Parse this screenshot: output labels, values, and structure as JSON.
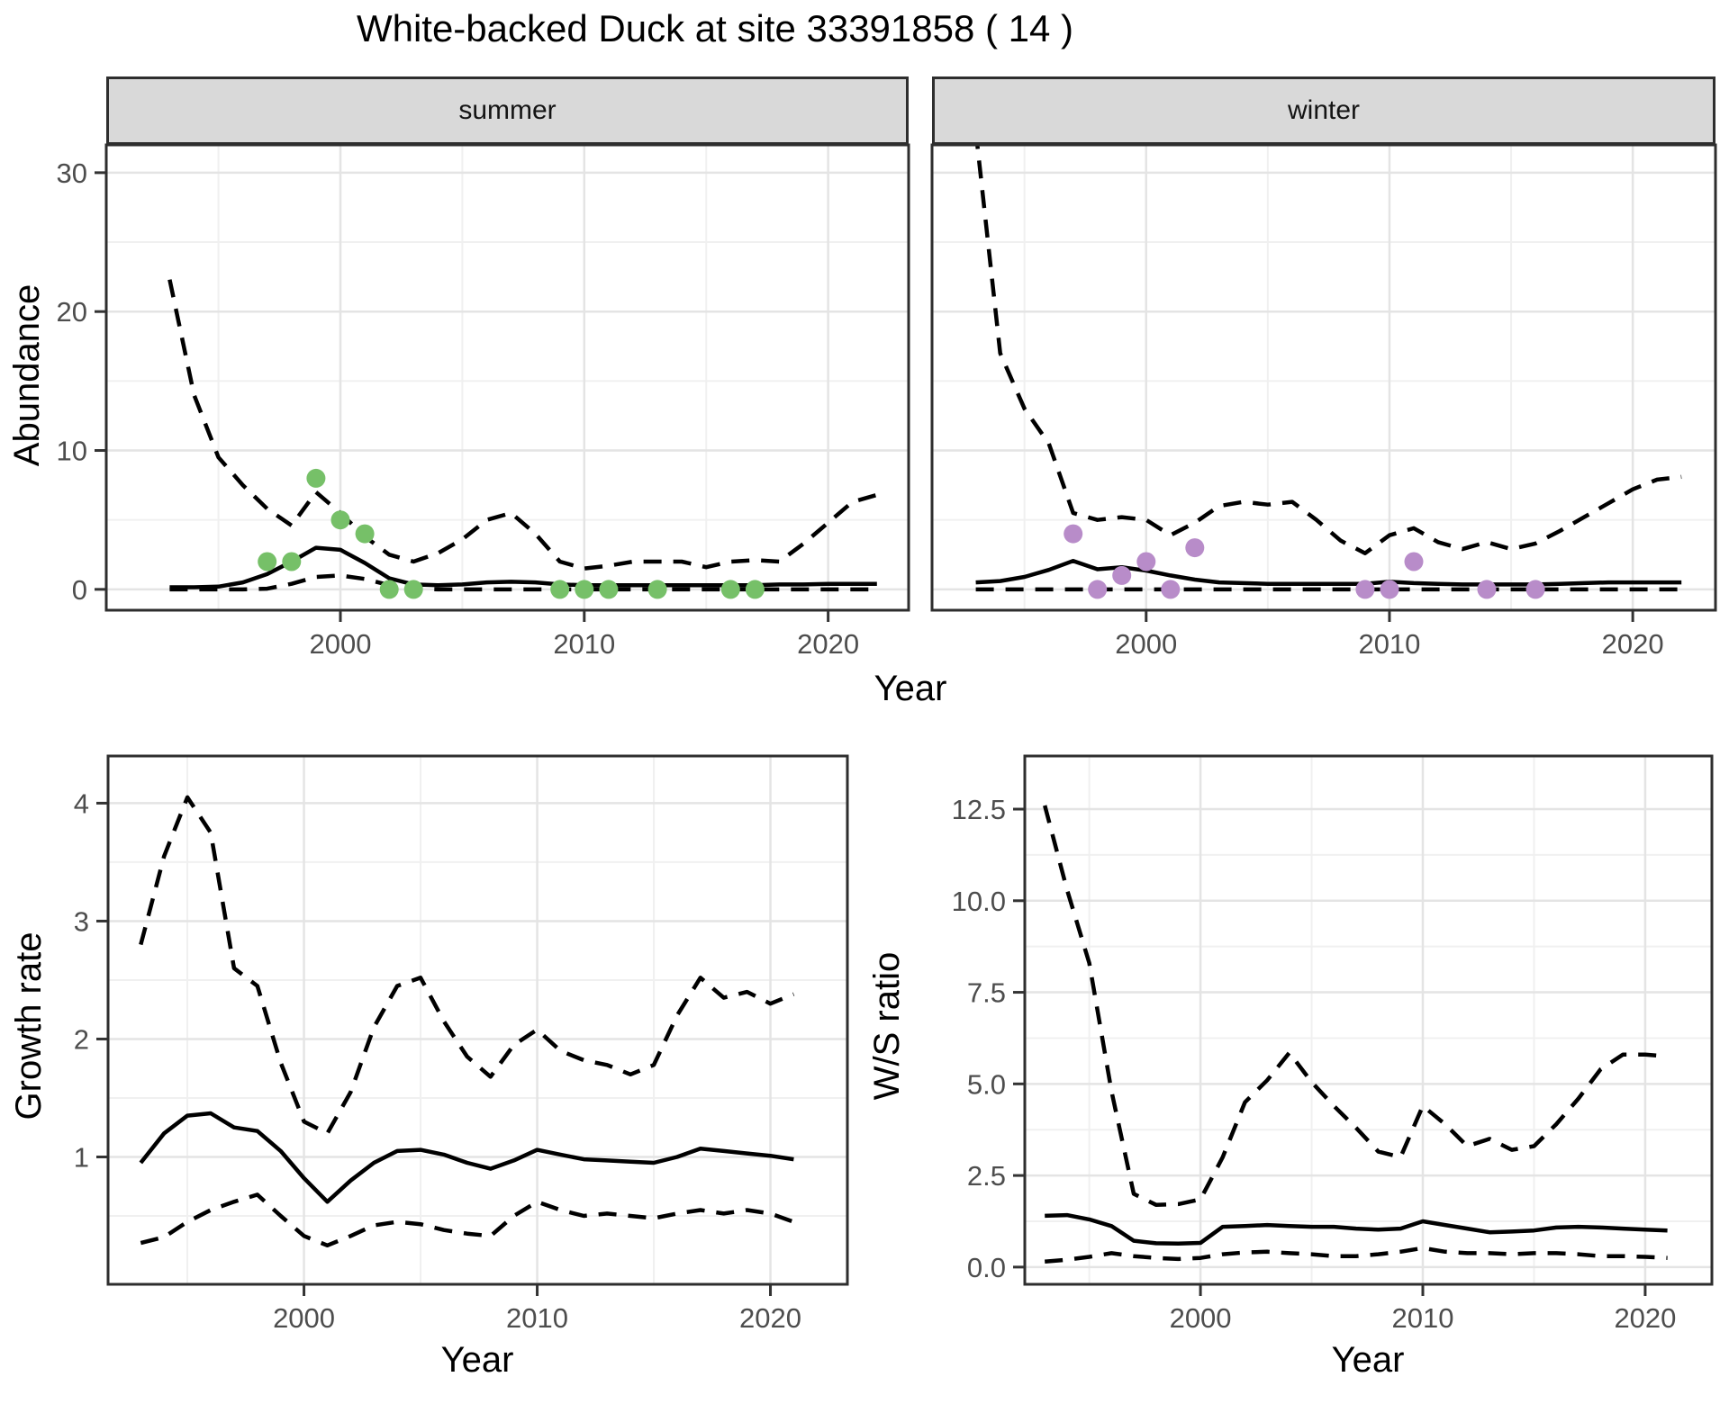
{
  "title": "White-backed Duck at site 33391858 ( 14 )",
  "colors": {
    "summer_point": "#76C068",
    "winter_point": "#B88CC9",
    "line": "#000000",
    "strip_bg": "#D9D9D9",
    "panel_border": "#2E2E2E",
    "grid_major": "#E4E4E4",
    "grid_minor": "#F0F0F0",
    "tick_text": "#4D4D4D"
  },
  "facets": {
    "summer": "summer",
    "winter": "winter"
  },
  "axis": {
    "abundance_label": "Abundance",
    "year_label": "Year",
    "growth_label": "Growth rate",
    "ws_label": "W/S ratio"
  },
  "chart_data": [
    {
      "id": "abundance_summer",
      "type": "line",
      "facet_label": "summer",
      "xlabel": "Year",
      "ylabel": "Abundance",
      "xlim": [
        1990.4,
        2023.3
      ],
      "ylim": [
        -1.5,
        32.0
      ],
      "xticks": [
        2000,
        2010,
        2020
      ],
      "xtick_labels": [
        "2000",
        "2010",
        "2020"
      ],
      "xminor": [
        1995,
        2005,
        2015
      ],
      "yticks": [
        0,
        10,
        20,
        30
      ],
      "ytick_labels": [
        "0",
        "10",
        "20",
        "30"
      ],
      "yminor": [
        5,
        15,
        25
      ],
      "grid": true,
      "legend": "none",
      "x": [
        1993,
        1994,
        1995,
        1996,
        1997,
        1998,
        1999,
        2000,
        2001,
        2002,
        2003,
        2004,
        2005,
        2006,
        2007,
        2008,
        2009,
        2010,
        2011,
        2012,
        2013,
        2014,
        2015,
        2016,
        2017,
        2018,
        2019,
        2020,
        2021,
        2022
      ],
      "series": [
        {
          "name": "median",
          "style": "solid",
          "values": [
            0.15,
            0.15,
            0.2,
            0.5,
            1.1,
            2.0,
            3.0,
            2.85,
            1.9,
            0.8,
            0.35,
            0.3,
            0.35,
            0.5,
            0.55,
            0.5,
            0.35,
            0.3,
            0.3,
            0.3,
            0.3,
            0.3,
            0.3,
            0.3,
            0.3,
            0.35,
            0.35,
            0.4,
            0.4,
            0.4
          ]
        },
        {
          "name": "upper_ci",
          "style": "dashed",
          "values": [
            22.3,
            14.0,
            9.5,
            7.5,
            5.8,
            4.6,
            7.0,
            5.5,
            3.8,
            2.5,
            2.0,
            2.6,
            3.6,
            5.0,
            5.5,
            4.0,
            2.0,
            1.5,
            1.7,
            2.0,
            2.0,
            2.0,
            1.6,
            2.0,
            2.1,
            2.0,
            3.3,
            4.8,
            6.3,
            6.8
          ]
        },
        {
          "name": "lower_ci",
          "style": "dashed",
          "values": [
            0,
            0,
            0,
            0,
            0.05,
            0.4,
            0.9,
            1.0,
            0.75,
            0.3,
            0.05,
            0,
            0,
            0,
            0,
            0,
            0,
            0,
            0,
            0,
            0,
            0,
            0,
            0,
            0,
            0,
            0,
            0,
            0,
            0
          ]
        }
      ],
      "points": {
        "name": "observed_counts",
        "color": "#76C068",
        "x": [
          1997,
          1998,
          1999,
          2000,
          2001,
          2002,
          2003,
          2009,
          2010,
          2011,
          2013,
          2016,
          2017
        ],
        "y": [
          2,
          2,
          8,
          5,
          4,
          0,
          0,
          0,
          0,
          0,
          0,
          0,
          0
        ]
      }
    },
    {
      "id": "abundance_winter",
      "type": "line",
      "facet_label": "winter",
      "xlabel": "Year",
      "ylabel": "Abundance",
      "xlim": [
        1991.2,
        2023.4
      ],
      "ylim": [
        -1.5,
        32.0
      ],
      "xticks": [
        2000,
        2010,
        2020
      ],
      "xtick_labels": [
        "2000",
        "2010",
        "2020"
      ],
      "xminor": [
        1995,
        2005,
        2015
      ],
      "yticks": [
        0,
        10,
        20,
        30
      ],
      "ytick_labels": [],
      "yminor": [
        5,
        15,
        25
      ],
      "grid": true,
      "legend": "none",
      "x": [
        1993,
        1994,
        1995,
        1996,
        1997,
        1998,
        1999,
        2000,
        2001,
        2002,
        2003,
        2004,
        2005,
        2006,
        2007,
        2008,
        2009,
        2010,
        2011,
        2012,
        2013,
        2014,
        2015,
        2016,
        2017,
        2018,
        2019,
        2020,
        2021,
        2022
      ],
      "series": [
        {
          "name": "median",
          "style": "solid",
          "values": [
            0.5,
            0.6,
            0.9,
            1.4,
            2.05,
            1.45,
            1.6,
            1.35,
            1.0,
            0.7,
            0.5,
            0.45,
            0.4,
            0.4,
            0.4,
            0.4,
            0.4,
            0.55,
            0.45,
            0.4,
            0.35,
            0.35,
            0.35,
            0.35,
            0.4,
            0.45,
            0.5,
            0.5,
            0.5,
            0.5
          ]
        },
        {
          "name": "upper_ci",
          "style": "dashed",
          "values": [
            33,
            17.0,
            13.0,
            10.5,
            5.5,
            5.0,
            5.2,
            5.0,
            3.9,
            4.8,
            6.0,
            6.3,
            6.1,
            6.3,
            5.0,
            3.5,
            2.6,
            3.9,
            4.4,
            3.4,
            2.9,
            3.4,
            2.9,
            3.3,
            4.2,
            5.2,
            6.2,
            7.2,
            7.9,
            8.1
          ]
        },
        {
          "name": "lower_ci",
          "style": "dashed",
          "values": [
            0,
            0,
            0,
            0,
            0,
            0,
            0,
            0,
            0,
            0,
            0,
            0,
            0,
            0,
            0,
            0,
            0,
            0,
            0,
            0,
            0,
            0,
            0,
            0,
            0,
            0,
            0,
            0,
            0,
            0
          ]
        }
      ],
      "points": {
        "name": "observed_counts",
        "color": "#B88CC9",
        "x": [
          1997,
          1998,
          1999,
          2000,
          2001,
          2002,
          2009,
          2010,
          2011,
          2014,
          2016
        ],
        "y": [
          4,
          0,
          1,
          2,
          0,
          3,
          0,
          0,
          2,
          0,
          0
        ]
      }
    },
    {
      "id": "growth_rate",
      "type": "line",
      "facet_label": "",
      "xlabel": "Year",
      "ylabel": "Growth rate",
      "xlim": [
        1991.6,
        2023.3
      ],
      "ylim": [
        -0.08,
        4.4
      ],
      "xticks": [
        2000,
        2010,
        2020
      ],
      "xtick_labels": [
        "2000",
        "2010",
        "2020"
      ],
      "xminor": [
        1995,
        2005,
        2015
      ],
      "yticks": [
        1,
        2,
        3,
        4
      ],
      "ytick_labels": [
        "1",
        "2",
        "3",
        "4"
      ],
      "yminor": [
        0.5,
        1.5,
        2.5,
        3.5
      ],
      "grid": true,
      "legend": "none",
      "x": [
        1993,
        1994,
        1995,
        1996,
        1997,
        1998,
        1999,
        2000,
        2001,
        2002,
        2003,
        2004,
        2005,
        2006,
        2007,
        2008,
        2009,
        2010,
        2011,
        2012,
        2013,
        2014,
        2015,
        2016,
        2017,
        2018,
        2019,
        2020,
        2021
      ],
      "series": [
        {
          "name": "median",
          "style": "solid",
          "values": [
            0.95,
            1.2,
            1.35,
            1.37,
            1.25,
            1.22,
            1.05,
            0.82,
            0.62,
            0.8,
            0.95,
            1.05,
            1.06,
            1.02,
            0.95,
            0.9,
            0.97,
            1.06,
            1.02,
            0.98,
            0.97,
            0.96,
            0.95,
            1.0,
            1.07,
            1.05,
            1.03,
            1.01,
            0.98
          ]
        },
        {
          "name": "upper_ci",
          "style": "dashed",
          "values": [
            2.8,
            3.55,
            4.05,
            3.75,
            2.6,
            2.45,
            1.8,
            1.3,
            1.2,
            1.55,
            2.1,
            2.45,
            2.52,
            2.15,
            1.85,
            1.68,
            1.95,
            2.08,
            1.9,
            1.82,
            1.78,
            1.7,
            1.78,
            2.2,
            2.52,
            2.35,
            2.4,
            2.3,
            2.38
          ]
        },
        {
          "name": "lower_ci",
          "style": "dashed",
          "values": [
            0.27,
            0.32,
            0.45,
            0.55,
            0.62,
            0.68,
            0.5,
            0.33,
            0.25,
            0.33,
            0.42,
            0.45,
            0.43,
            0.38,
            0.35,
            0.33,
            0.5,
            0.62,
            0.55,
            0.5,
            0.52,
            0.5,
            0.48,
            0.52,
            0.55,
            0.52,
            0.55,
            0.52,
            0.45
          ]
        }
      ],
      "points": null
    },
    {
      "id": "ws_ratio",
      "type": "line",
      "facet_label": "",
      "xlabel": "Year",
      "ylabel": "W/S ratio",
      "xlim": [
        1992.1,
        2023.0
      ],
      "ylim": [
        -0.47,
        13.95
      ],
      "xticks": [
        2000,
        2010,
        2020
      ],
      "xtick_labels": [
        "2000",
        "2010",
        "2020"
      ],
      "xminor": [
        1995,
        2005,
        2015
      ],
      "yticks": [
        0,
        2.5,
        5,
        7.5,
        10,
        12.5
      ],
      "ytick_labels": [
        "0.0",
        "2.5",
        "5.0",
        "7.5",
        "10.0",
        "12.5"
      ],
      "yminor": [
        1.25,
        3.75,
        6.25,
        8.75,
        11.25
      ],
      "grid": true,
      "legend": "none",
      "x": [
        1993,
        1994,
        1995,
        1996,
        1997,
        1998,
        1999,
        2000,
        2001,
        2002,
        2003,
        2004,
        2005,
        2006,
        2007,
        2008,
        2009,
        2010,
        2011,
        2012,
        2013,
        2014,
        2015,
        2016,
        2017,
        2018,
        2019,
        2020,
        2021
      ],
      "series": [
        {
          "name": "median",
          "style": "solid",
          "values": [
            1.4,
            1.42,
            1.3,
            1.12,
            0.72,
            0.65,
            0.64,
            0.66,
            1.1,
            1.12,
            1.15,
            1.12,
            1.1,
            1.1,
            1.05,
            1.02,
            1.05,
            1.25,
            1.15,
            1.05,
            0.95,
            0.97,
            1.0,
            1.08,
            1.1,
            1.08,
            1.05,
            1.02,
            1.0
          ]
        },
        {
          "name": "upper_ci",
          "style": "dashed",
          "values": [
            12.6,
            10.3,
            8.3,
            4.8,
            2.0,
            1.7,
            1.72,
            1.85,
            3.0,
            4.5,
            5.1,
            5.85,
            5.05,
            4.4,
            3.8,
            3.15,
            3.0,
            4.4,
            3.9,
            3.3,
            3.5,
            3.2,
            3.3,
            3.9,
            4.6,
            5.4,
            5.8,
            5.8,
            5.75
          ]
        },
        {
          "name": "lower_ci",
          "style": "dashed",
          "values": [
            0.15,
            0.2,
            0.28,
            0.38,
            0.3,
            0.25,
            0.22,
            0.25,
            0.35,
            0.4,
            0.42,
            0.38,
            0.35,
            0.3,
            0.3,
            0.35,
            0.42,
            0.52,
            0.42,
            0.38,
            0.38,
            0.35,
            0.38,
            0.38,
            0.35,
            0.3,
            0.3,
            0.28,
            0.25
          ]
        }
      ],
      "points": null
    }
  ]
}
